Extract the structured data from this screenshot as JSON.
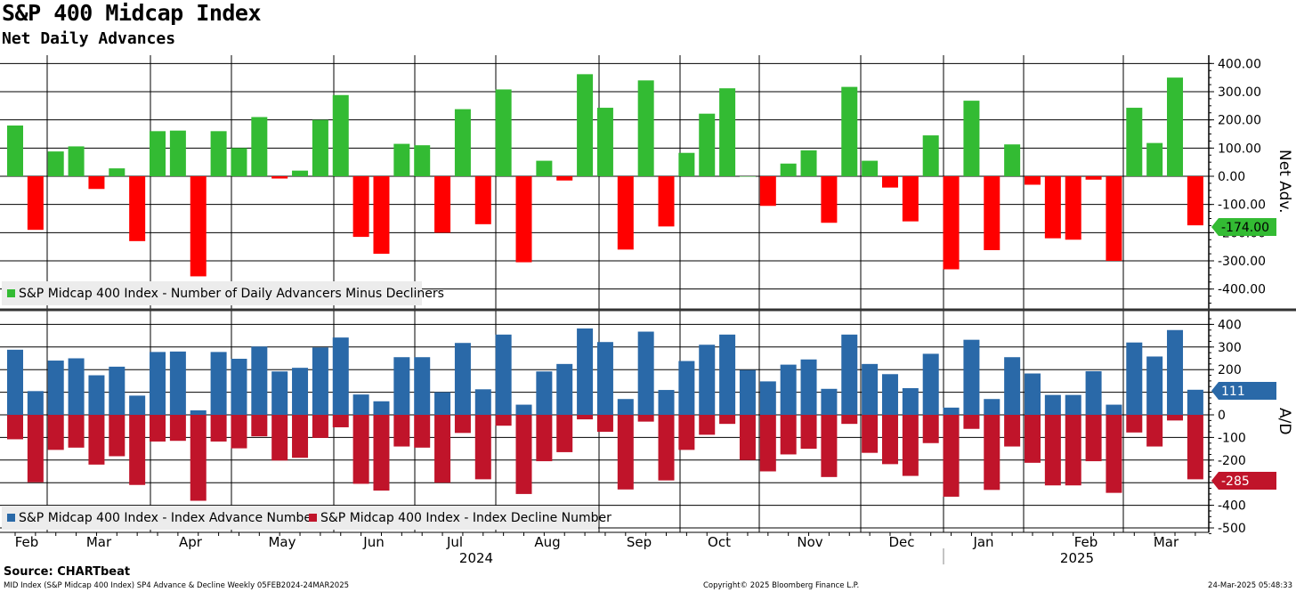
{
  "title": "S&P 400 Midcap Index",
  "subtitle": "Net Daily Advances",
  "source": "Source: CHARTbeat",
  "footer": {
    "left": "MID Index (S&P Midcap 400 Index) SP4 Advance & Decline  Weekly 05FEB2024-24MAR2025",
    "center": "Copyright© 2025 Bloomberg Finance L.P.",
    "right": "24-Mar-2025 05:48:33"
  },
  "colors": {
    "net_positive": "#33bb33",
    "net_negative": "#ff0000",
    "advance": "#2a69a8",
    "decline": "#c0142a",
    "grid": "#000000"
  },
  "chart_data": [
    {
      "type": "bar",
      "ylabel": "Net Adv.",
      "ylim": [
        -450,
        430
      ],
      "y_ticks": [
        "400.00",
        "300.00",
        "200.00",
        "100.00",
        "0.00",
        "-100.00",
        "-200.00",
        "-300.00",
        "-400.00"
      ],
      "y_tick_values": [
        400,
        300,
        200,
        100,
        0,
        -100,
        -200,
        -300,
        -400
      ],
      "series": [
        {
          "name": "S&P Midcap 400 Index - Number of Daily Advancers Minus Decliners",
          "values": [
            180,
            -190,
            88,
            106,
            -45,
            28,
            -230,
            160,
            162,
            -355,
            160,
            100,
            210,
            -8,
            20,
            200,
            288,
            -215,
            -275,
            115,
            110,
            -200,
            238,
            -170,
            308,
            -305,
            55,
            -15,
            362,
            243,
            -260,
            340,
            -178,
            83,
            222,
            312,
            0,
            -105,
            45,
            92,
            -165,
            317,
            55,
            -40,
            -160,
            145,
            -330,
            268,
            -262,
            113,
            -30,
            -220,
            -225,
            -12,
            -300,
            243,
            118,
            350,
            -174
          ]
        }
      ],
      "last_value_label": "-174.00"
    },
    {
      "type": "bar",
      "ylabel": "A/D",
      "ylim": [
        -530,
        430
      ],
      "y_ticks": [
        "400",
        "300",
        "200",
        "100",
        "0",
        "-100",
        "-200",
        "-300",
        "-400",
        "-500"
      ],
      "y_tick_values": [
        400,
        300,
        200,
        100,
        0,
        -100,
        -200,
        -300,
        -400,
        -500
      ],
      "series": [
        {
          "name": "S&P Midcap 400 Index - Index Advance Number",
          "values": [
            288,
            105,
            240,
            250,
            175,
            213,
            85,
            278,
            280,
            20,
            278,
            248,
            302,
            192,
            208,
            298,
            342,
            90,
            60,
            255,
            255,
            100,
            318,
            113,
            355,
            45,
            192,
            225,
            382,
            322,
            70,
            368,
            110,
            238,
            310,
            355,
            198,
            148,
            222,
            245,
            115,
            355,
            225,
            180,
            118,
            270,
            32,
            332,
            70,
            255,
            183,
            88,
            88,
            193,
            45,
            320,
            258,
            375,
            111
          ]
        },
        {
          "name": "S&P Midcap 400 Index - Index Decline Number",
          "values": [
            -108,
            -298,
            -155,
            -145,
            -220,
            -183,
            -310,
            -118,
            -115,
            -380,
            -118,
            -148,
            -95,
            -202,
            -190,
            -102,
            -55,
            -305,
            -335,
            -140,
            -145,
            -300,
            -80,
            -285,
            -48,
            -350,
            -205,
            -165,
            -20,
            -75,
            -330,
            -30,
            -290,
            -155,
            -88,
            -40,
            -200,
            -250,
            -175,
            -150,
            -275,
            -40,
            -168,
            -218,
            -270,
            -125,
            -362,
            -62,
            -332,
            -140,
            -212,
            -312,
            -312,
            -205,
            -345,
            -78,
            -140,
            -25,
            -285
          ]
        }
      ],
      "last_value_labels": [
        "111",
        "-285"
      ]
    }
  ],
  "x_axis": {
    "months": [
      "Feb",
      "Mar",
      "Apr",
      "May",
      "Jun",
      "Jul",
      "Aug",
      "Sep",
      "Oct",
      "Nov",
      "Dec",
      "Jan",
      "Feb",
      "Mar"
    ],
    "years": [
      "2024",
      "2025"
    ]
  }
}
